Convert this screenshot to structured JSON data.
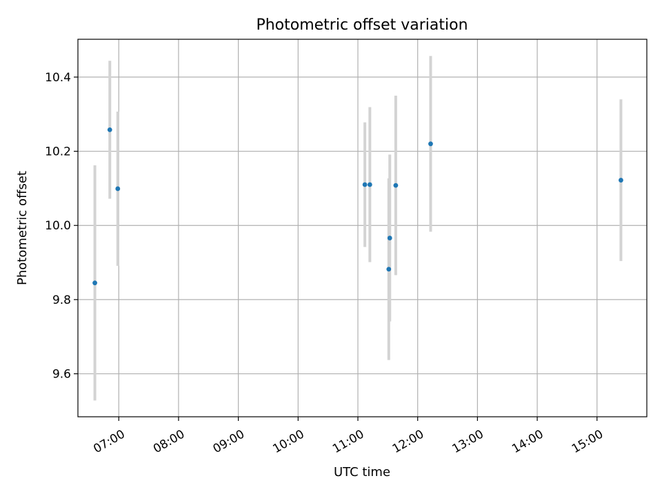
{
  "chart_data": {
    "type": "scatter",
    "title": "Photometric offset variation",
    "xlabel": "UTC time",
    "ylabel": "Photometric offset",
    "x_ticks": [
      "07:00",
      "08:00",
      "09:00",
      "10:00",
      "11:00",
      "12:00",
      "13:00",
      "14:00",
      "15:00"
    ],
    "y_ticks": [
      "9.6",
      "9.8",
      "10.0",
      "10.2",
      "10.4"
    ],
    "xlim": [
      "06:19",
      "15:50"
    ],
    "ylim": [
      9.484,
      10.502
    ],
    "grid": true,
    "points": [
      {
        "x": "06:36",
        "y": 9.845,
        "err": 0.317
      },
      {
        "x": "06:51",
        "y": 10.258,
        "err": 0.186
      },
      {
        "x": "06:59",
        "y": 10.099,
        "err": 0.208
      },
      {
        "x": "11:07",
        "y": 10.11,
        "err": 0.168
      },
      {
        "x": "11:12",
        "y": 10.11,
        "err": 0.209
      },
      {
        "x": "11:31",
        "y": 9.882,
        "err": 0.245
      },
      {
        "x": "11:32",
        "y": 9.966,
        "err": 0.225
      },
      {
        "x": "11:38",
        "y": 10.108,
        "err": 0.242
      },
      {
        "x": "12:13",
        "y": 10.22,
        "err": 0.237
      },
      {
        "x": "15:24",
        "y": 10.122,
        "err": 0.218
      }
    ],
    "colors": {
      "marker": "#1f77b4",
      "errorbar": "#d3d3d3",
      "grid": "#b0b0b0",
      "axes": "#000000"
    }
  }
}
